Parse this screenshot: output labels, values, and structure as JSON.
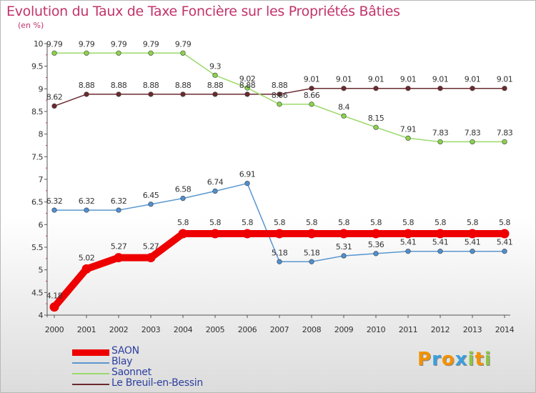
{
  "chart_data": {
    "type": "line",
    "title": "Evolution du Taux de Taxe Foncière sur les Propriétés Bâties",
    "ylabel": "(en %)",
    "xlabel": "",
    "x": [
      "2000",
      "2001",
      "2002",
      "2003",
      "2004",
      "2005",
      "2006",
      "2007",
      "2008",
      "2009",
      "2010",
      "2011",
      "2012",
      "2013",
      "2014"
    ],
    "ylim": [
      4,
      10
    ],
    "yticks": [
      "4",
      "4.5",
      "5",
      "5.5",
      "6",
      "6.5",
      "7",
      "7.5",
      "8",
      "8.5",
      "9",
      "9.5",
      "10"
    ],
    "grid": false,
    "series": [
      {
        "name": "Le Breuil-en-Bessin",
        "color": "#6b2a2f",
        "marker": "#6b2a2f",
        "values": [
          8.62,
          8.88,
          8.88,
          8.88,
          8.88,
          8.88,
          8.88,
          8.88,
          9.01,
          9.01,
          9.01,
          9.01,
          9.01,
          9.01,
          9.01
        ],
        "labels": [
          "8.62",
          "8.88",
          "8.88",
          "8.88",
          "8.88",
          "8.88",
          "8.88",
          "8.88",
          "9.01",
          "9.01",
          "9.01",
          "9.01",
          "9.01",
          "9.01",
          "9.01"
        ]
      },
      {
        "name": "Saonnet",
        "color": "#9ad96a",
        "marker": "#8bd34d",
        "values": [
          9.79,
          9.79,
          9.79,
          9.79,
          9.79,
          9.3,
          9.02,
          8.66,
          8.66,
          8.4,
          8.15,
          7.91,
          7.83,
          7.83,
          7.83
        ],
        "labels": [
          "9.79",
          "9.79",
          "9.79",
          "9.79",
          "9.79",
          "9.3",
          "9.02",
          "8.66",
          "8.66",
          "8.4",
          "8.15",
          "7.91",
          "7.83",
          "7.83",
          "7.83"
        ]
      },
      {
        "name": "Blay",
        "color": "#5b97cf",
        "marker": "#4f90d0",
        "values": [
          6.32,
          6.32,
          6.32,
          6.45,
          6.58,
          6.74,
          6.91,
          5.18,
          5.18,
          5.31,
          5.36,
          5.41,
          5.41,
          5.41,
          5.41
        ],
        "labels": [
          "6.32",
          "6.32",
          "6.32",
          "6.45",
          "6.58",
          "6.74",
          "6.91",
          "5.18",
          "5.18",
          "5.31",
          "5.36",
          "5.41",
          "5.41",
          "5.41",
          "5.41"
        ]
      },
      {
        "name": "SAON",
        "color": "#ee0000",
        "marker": "#ee0000",
        "values": [
          4.18,
          5.02,
          5.27,
          5.27,
          5.8,
          5.8,
          5.8,
          5.8,
          5.8,
          5.8,
          5.8,
          5.8,
          5.8,
          5.8,
          5.8
        ],
        "labels": [
          "4.18",
          "5.02",
          "5.27",
          "5.27",
          "5.8",
          "5.8",
          "5.8",
          "5.8",
          "5.8",
          "5.8",
          "5.8",
          "5.8",
          "5.8",
          "5.8",
          "5.8"
        ]
      }
    ]
  },
  "legend": [
    {
      "label": "SAON",
      "color": "#ee0000",
      "thickness": "thick"
    },
    {
      "label": "Blay",
      "color": "#5b97cf",
      "thickness": "thin"
    },
    {
      "label": "Saonnet",
      "color": "#9ad96a",
      "thickness": "thin"
    },
    {
      "label": "Le Breuil-en-Bessin",
      "color": "#6b2a2f",
      "thickness": "thin"
    }
  ],
  "logo": {
    "letters": [
      "P",
      "r",
      "o",
      "x",
      "i",
      "t",
      "i"
    ],
    "colors": [
      "#f39200",
      "#3aa0dc",
      "#f39200",
      "#3aa0dc",
      "#8cc63f",
      "#f39200",
      "#8cc63f"
    ]
  }
}
